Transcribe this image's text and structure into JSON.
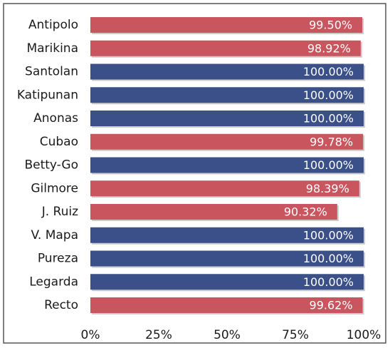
{
  "chart_data": {
    "type": "bar",
    "orientation": "horizontal",
    "categories": [
      "Antipolo",
      "Marikina",
      "Santolan",
      "Katipunan",
      "Anonas",
      "Cubao",
      "Betty-Go",
      "Gilmore",
      "J. Ruiz",
      "V. Mapa",
      "Pureza",
      "Legarda",
      "Recto"
    ],
    "values": [
      99.5,
      98.92,
      100,
      100,
      100,
      99.78,
      100,
      98.39,
      90.32,
      100,
      100,
      100,
      99.62
    ],
    "value_labels": [
      "99.50%",
      "98.92%",
      "100.00%",
      "100.00%",
      "100.00%",
      "99.78%",
      "100.00%",
      "98.39%",
      "90.32%",
      "100.00%",
      "100.00%",
      "100.00%",
      "99.62%"
    ],
    "colors": [
      "#c9555f",
      "#c9555f",
      "#3b4f88",
      "#3b4f88",
      "#3b4f88",
      "#c9555f",
      "#3b4f88",
      "#c9555f",
      "#c9555f",
      "#3b4f88",
      "#3b4f88",
      "#3b4f88",
      "#c9555f"
    ],
    "xlim": [
      0,
      100
    ],
    "xticks": [
      {
        "value": 0,
        "label": "0%"
      },
      {
        "value": 25,
        "label": "25%"
      },
      {
        "value": 50,
        "label": "50%"
      },
      {
        "value": 75,
        "label": "75%"
      },
      {
        "value": 100,
        "label": "100%"
      }
    ],
    "grid": false
  }
}
